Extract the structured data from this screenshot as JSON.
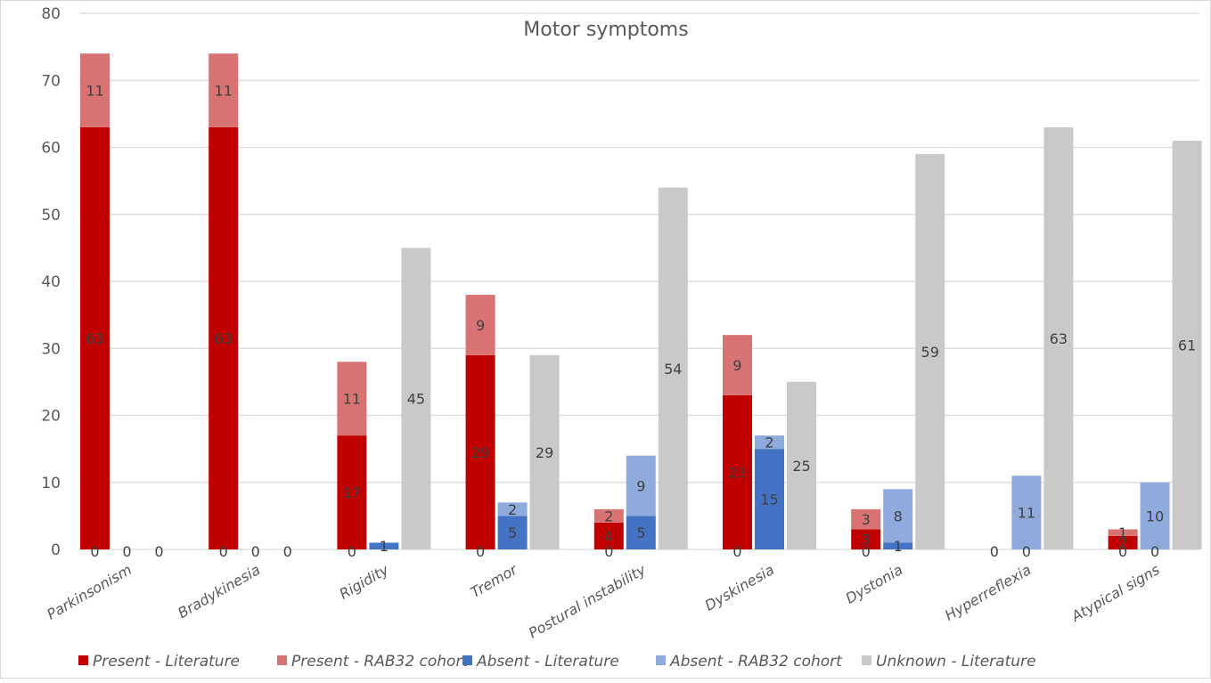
{
  "chart_data": {
    "type": "bar",
    "subtype": "stacked-clustered",
    "title": "Motor symptoms",
    "xlabel": "",
    "ylabel": "",
    "ylim": [
      0,
      80
    ],
    "yticks": [
      0,
      10,
      20,
      30,
      40,
      50,
      60,
      70,
      80
    ],
    "grid": true,
    "legend_position": "bottom",
    "categories": [
      "Parkinsonism",
      "Bradykinesia",
      "Rigidity",
      "Tremor",
      "Postural instability",
      "Dyskinesia",
      "Dystonia",
      "Hyperreflexia",
      "Atypical signs"
    ],
    "stacks": [
      {
        "name": "Present",
        "series": [
          "Present - Literature",
          "Present - RAB32 cohort"
        ]
      },
      {
        "name": "Absent",
        "series": [
          "Absent - Literature",
          "Absent - RAB32 cohort"
        ]
      },
      {
        "name": "Unknown",
        "series": [
          "Unknown - Literature"
        ]
      }
    ],
    "series": [
      {
        "name": "Present - Literature",
        "stack": "Present",
        "color": "#c00000",
        "values": [
          63,
          63,
          17,
          29,
          4,
          23,
          3,
          0,
          2
        ]
      },
      {
        "name": "Present - RAB32 cohort",
        "stack": "Present",
        "color": "#d97373",
        "values": [
          11,
          11,
          11,
          9,
          2,
          9,
          3,
          0,
          1
        ]
      },
      {
        "name": "Absent - Literature",
        "stack": "Absent",
        "color": "#4472c4",
        "values": [
          0,
          0,
          1,
          5,
          5,
          15,
          1,
          0,
          0
        ]
      },
      {
        "name": "Absent - RAB32 cohort",
        "stack": "Absent",
        "color": "#8faadc",
        "values": [
          0,
          0,
          0,
          2,
          9,
          2,
          8,
          11,
          10
        ]
      },
      {
        "name": "Unknown - Literature",
        "stack": "Unknown",
        "color": "#c9c9c9",
        "values": [
          0,
          0,
          45,
          29,
          54,
          25,
          59,
          63,
          61
        ]
      }
    ],
    "baseline_labels": {
      "Present": [
        "0",
        "0",
        "0",
        "0",
        "0",
        "0",
        "0",
        "0",
        "0"
      ],
      "Absent": [
        "0",
        "0",
        "",
        "",
        "",
        "",
        "",
        "0",
        "0"
      ],
      "Unknown": [
        "0",
        "0",
        "",
        "",
        "",
        "",
        "",
        "",
        ""
      ]
    }
  }
}
